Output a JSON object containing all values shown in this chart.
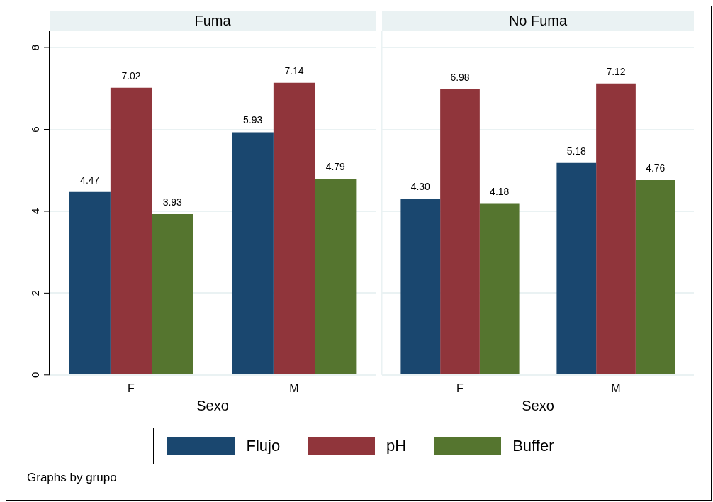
{
  "chart_data": [
    {
      "type": "bar",
      "title": "Fuma",
      "xlabel": "Sexo",
      "categories": [
        "F",
        "M"
      ],
      "series": [
        {
          "name": "Flujo",
          "color": "#1a476f",
          "values": [
            4.47,
            5.93
          ],
          "value_labels": [
            "4.47",
            "5.93"
          ]
        },
        {
          "name": "pH",
          "color": "#90353b",
          "values": [
            7.02,
            7.14
          ],
          "value_labels": [
            "7.02",
            "7.14"
          ]
        },
        {
          "name": "Buffer",
          "color": "#55752f",
          "values": [
            3.93,
            4.79
          ],
          "value_labels": [
            "3.93",
            "4.79"
          ]
        }
      ],
      "ylim": [
        0,
        8.4
      ],
      "yticks": [
        0,
        2,
        4,
        6,
        8
      ],
      "grid": "y",
      "legend": "bottom",
      "annotations": [
        "Graphs by grupo"
      ]
    },
    {
      "type": "bar",
      "title": "No Fuma",
      "xlabel": "Sexo",
      "categories": [
        "F",
        "M"
      ],
      "series": [
        {
          "color": "#1a476f",
          "values": [
            4.3,
            5.18
          ],
          "value_labels": [
            "4.30",
            "5.18"
          ]
        },
        {
          "color": "#90353b",
          "values": [
            6.98,
            7.12
          ],
          "value_labels": [
            "6.98",
            "7.12"
          ]
        },
        {
          "color": "#55752f",
          "values": [
            4.18,
            4.76
          ],
          "value_labels": [
            "4.18",
            "4.76"
          ]
        }
      ],
      "ylim": [
        0,
        8.4
      ],
      "yticks": [
        0,
        2,
        4,
        6,
        8
      ],
      "grid": "y",
      "tick_labels": "x"
    }
  ]
}
